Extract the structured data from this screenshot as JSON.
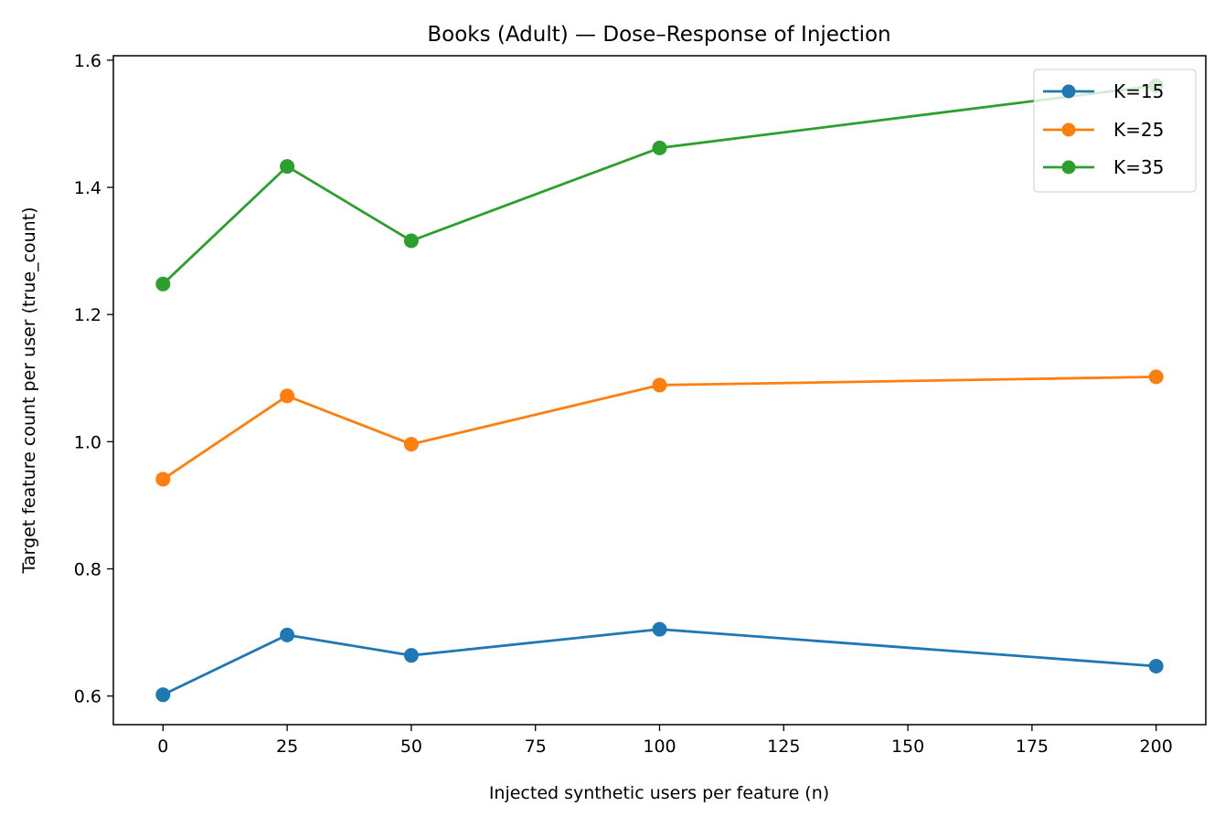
{
  "chart_data": {
    "type": "line",
    "title": "Books (Adult) — Dose–Response of Injection",
    "xlabel": "Injected synthetic users per feature (n)",
    "ylabel": "Target feature count per user (true_count)",
    "xlim": [
      -10,
      210
    ],
    "ylim": [
      0.555,
      1.607
    ],
    "x_ticks": [
      0,
      25,
      50,
      75,
      100,
      125,
      150,
      175,
      200
    ],
    "y_ticks": [
      0.6,
      0.8,
      1.0,
      1.2,
      1.4,
      1.6
    ],
    "x_tick_labels": [
      "0",
      "25",
      "50",
      "75",
      "100",
      "125",
      "150",
      "175",
      "200"
    ],
    "y_tick_labels": [
      "0.6",
      "0.8",
      "1.0",
      "1.2",
      "1.4",
      "1.6"
    ],
    "grid": false,
    "legend_position": "top-right",
    "x": [
      0,
      25,
      50,
      100,
      200
    ],
    "series": [
      {
        "name": "K=15",
        "color": "#1f77b4",
        "values": [
          0.602,
          0.696,
          0.664,
          0.705,
          0.647
        ]
      },
      {
        "name": "K=25",
        "color": "#ff7f0e",
        "values": [
          0.941,
          1.072,
          0.996,
          1.089,
          1.102
        ]
      },
      {
        "name": "K=35",
        "color": "#2ca02c",
        "values": [
          1.248,
          1.433,
          1.316,
          1.462,
          1.56
        ]
      }
    ]
  }
}
